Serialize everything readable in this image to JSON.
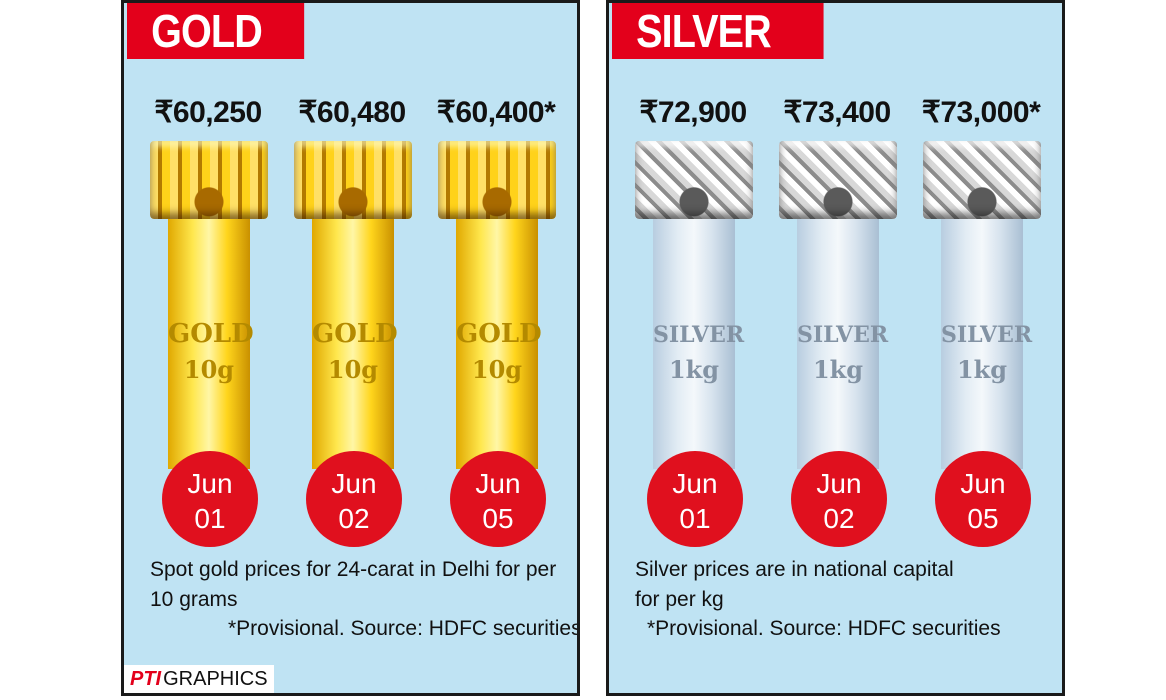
{
  "gold": {
    "title": "GOLD",
    "items": [
      {
        "price": "₹60,250",
        "metal": "GOLD",
        "weight": "10g",
        "month": "Jun",
        "day": "01"
      },
      {
        "price": "₹60,480",
        "metal": "GOLD",
        "weight": "10g",
        "month": "Jun",
        "day": "02"
      },
      {
        "price": "₹60,400*",
        "metal": "GOLD",
        "weight": "10g",
        "month": "Jun",
        "day": "05"
      }
    ],
    "note": "Spot gold prices for 24-carat in Delhi for per 10 grams",
    "source": "*Provisional.  Source: HDFC securities"
  },
  "silver": {
    "title": "SILVER",
    "items": [
      {
        "price": "₹72,900",
        "metal": "SILVER",
        "weight": "1kg",
        "month": "Jun",
        "day": "01"
      },
      {
        "price": "₹73,400",
        "metal": "SILVER",
        "weight": "1kg",
        "month": "Jun",
        "day": "02"
      },
      {
        "price": "₹73,000*",
        "metal": "SILVER",
        "weight": "1kg",
        "month": "Jun",
        "day": "05"
      }
    ],
    "note_line1": "Silver prices are in national capital",
    "note_line2": "for per kg",
    "source": "*Provisional.  Source: HDFC securities"
  },
  "credit": {
    "logo": "PTI",
    "label": "GRAPHICS"
  },
  "colors": {
    "accent_red": "#e3001b",
    "panel_bg": "#bfe3f3"
  }
}
